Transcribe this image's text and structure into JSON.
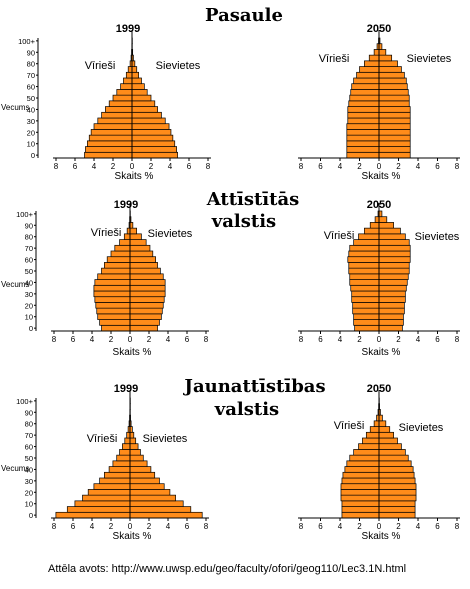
{
  "section_titles": {
    "world": "Pasaule",
    "developed": [
      "Attīstītās",
      "valstis"
    ],
    "developing": [
      "Jaunattīstības",
      "valstis"
    ]
  },
  "labels": {
    "males": "Vīrieši",
    "females": "Sievietes",
    "y_axis": "Vecums",
    "x_axis": "Skaits %"
  },
  "source": "Attēla avots: http://www.uwsp.edu/geo/faculty/ofori/geog110/Lec3.1N.html",
  "colors": {
    "bar_fill": "#ff8c1a",
    "bar_stroke": "#000000"
  },
  "chart_data": [
    {
      "type": "bar",
      "orientation": "horizontal",
      "group": "Pasaule",
      "title": "1999",
      "categories": [
        "0",
        "5",
        "10",
        "15",
        "20",
        "25",
        "30",
        "35",
        "40",
        "45",
        "50",
        "55",
        "60",
        "65",
        "70",
        "75",
        "80",
        "85",
        "90",
        "95",
        "100+"
      ],
      "xlim": [
        -8,
        8
      ],
      "x_ticks": [
        "8",
        "6",
        "4",
        "2",
        "0",
        "2",
        "4",
        "6",
        "8"
      ],
      "series": [
        {
          "name": "Vīrieši",
          "values": [
            5.0,
            4.9,
            4.7,
            4.5,
            4.3,
            4.0,
            3.6,
            3.2,
            2.8,
            2.4,
            2.0,
            1.6,
            1.2,
            0.9,
            0.6,
            0.4,
            0.2,
            0.1,
            0.05,
            0.02,
            0.01
          ]
        },
        {
          "name": "Sievietes",
          "values": [
            4.8,
            4.7,
            4.5,
            4.3,
            4.1,
            3.9,
            3.5,
            3.1,
            2.7,
            2.4,
            2.0,
            1.6,
            1.3,
            1.0,
            0.7,
            0.5,
            0.3,
            0.15,
            0.07,
            0.03,
            0.01
          ]
        }
      ]
    },
    {
      "type": "bar",
      "orientation": "horizontal",
      "group": "Pasaule",
      "title": "2050",
      "categories": [
        "0",
        "5",
        "10",
        "15",
        "20",
        "25",
        "30",
        "35",
        "40",
        "45",
        "50",
        "55",
        "60",
        "65",
        "70",
        "75",
        "80",
        "85",
        "90",
        "95",
        "100+"
      ],
      "xlim": [
        -8,
        8
      ],
      "x_ticks": [
        "8",
        "6",
        "4",
        "2",
        "0",
        "2",
        "4",
        "6",
        "8"
      ],
      "series": [
        {
          "name": "Vīrieši",
          "values": [
            3.3,
            3.3,
            3.3,
            3.3,
            3.3,
            3.3,
            3.2,
            3.2,
            3.2,
            3.1,
            3.0,
            2.9,
            2.8,
            2.6,
            2.3,
            2.0,
            1.5,
            1.0,
            0.5,
            0.2,
            0.05
          ]
        },
        {
          "name": "Sievietes",
          "values": [
            3.2,
            3.2,
            3.2,
            3.2,
            3.2,
            3.2,
            3.2,
            3.2,
            3.2,
            3.1,
            3.1,
            3.0,
            2.9,
            2.8,
            2.6,
            2.3,
            1.9,
            1.3,
            0.7,
            0.3,
            0.1
          ]
        }
      ]
    },
    {
      "type": "bar",
      "orientation": "horizontal",
      "group": "Attīstītās valstis",
      "title": "1999",
      "categories": [
        "0",
        "5",
        "10",
        "15",
        "20",
        "25",
        "30",
        "35",
        "40",
        "45",
        "50",
        "55",
        "60",
        "65",
        "70",
        "75",
        "80",
        "85",
        "90",
        "95",
        "100+"
      ],
      "xlim": [
        -8,
        8
      ],
      "x_ticks": [
        "8",
        "6",
        "4",
        "2",
        "0",
        "2",
        "4",
        "6",
        "8"
      ],
      "series": [
        {
          "name": "Vīrieši",
          "values": [
            3.0,
            3.2,
            3.4,
            3.5,
            3.6,
            3.7,
            3.8,
            3.8,
            3.7,
            3.4,
            3.0,
            2.7,
            2.4,
            2.0,
            1.6,
            1.1,
            0.6,
            0.3,
            0.1,
            0.04,
            0.01
          ]
        },
        {
          "name": "Sievietes",
          "values": [
            2.9,
            3.1,
            3.3,
            3.4,
            3.5,
            3.6,
            3.7,
            3.7,
            3.7,
            3.5,
            3.2,
            2.9,
            2.7,
            2.4,
            2.1,
            1.7,
            1.2,
            0.7,
            0.3,
            0.1,
            0.02
          ]
        }
      ]
    },
    {
      "type": "bar",
      "orientation": "horizontal",
      "group": "Attīstītās valstis",
      "title": "2050",
      "categories": [
        "0",
        "5",
        "10",
        "15",
        "20",
        "25",
        "30",
        "35",
        "40",
        "45",
        "50",
        "55",
        "60",
        "65",
        "70",
        "75",
        "80",
        "85",
        "90",
        "95",
        "100+"
      ],
      "xlim": [
        -8,
        8
      ],
      "x_ticks": [
        "8",
        "6",
        "4",
        "2",
        "0",
        "2",
        "4",
        "6",
        "8"
      ],
      "series": [
        {
          "name": "Vīrieši",
          "values": [
            2.5,
            2.6,
            2.6,
            2.7,
            2.7,
            2.8,
            2.8,
            2.9,
            3.0,
            3.0,
            3.1,
            3.1,
            3.2,
            3.1,
            3.0,
            2.6,
            2.1,
            1.5,
            0.9,
            0.4,
            0.1
          ]
        },
        {
          "name": "Sievietes",
          "values": [
            2.4,
            2.5,
            2.5,
            2.6,
            2.6,
            2.7,
            2.7,
            2.8,
            2.9,
            3.0,
            3.1,
            3.1,
            3.2,
            3.2,
            3.2,
            3.1,
            2.7,
            2.2,
            1.5,
            0.8,
            0.3
          ]
        }
      ]
    },
    {
      "type": "bar",
      "orientation": "horizontal",
      "group": "Jaunattīstības valstis",
      "title": "1999",
      "categories": [
        "0",
        "5",
        "10",
        "15",
        "20",
        "25",
        "30",
        "35",
        "40",
        "45",
        "50",
        "55",
        "60",
        "65",
        "70",
        "75",
        "80",
        "85",
        "90",
        "95",
        "100+"
      ],
      "xlim": [
        -8,
        8
      ],
      "x_ticks": [
        "8",
        "6",
        "4",
        "2",
        "0",
        "2",
        "4",
        "6",
        "8"
      ],
      "series": [
        {
          "name": "Vīrieši",
          "values": [
            7.8,
            6.6,
            5.8,
            5.0,
            4.4,
            3.8,
            3.2,
            2.7,
            2.2,
            1.8,
            1.4,
            1.1,
            0.8,
            0.55,
            0.35,
            0.2,
            0.1,
            0.05,
            0.02,
            0.01,
            0.01
          ]
        },
        {
          "name": "Sievietes",
          "values": [
            7.6,
            6.4,
            5.6,
            4.8,
            4.2,
            3.6,
            3.1,
            2.6,
            2.2,
            1.8,
            1.4,
            1.1,
            0.85,
            0.6,
            0.4,
            0.25,
            0.12,
            0.06,
            0.03,
            0.01,
            0.01
          ]
        }
      ]
    },
    {
      "type": "bar",
      "orientation": "horizontal",
      "group": "Jaunattīstības valstis",
      "title": "2050",
      "categories": [
        "0",
        "5",
        "10",
        "15",
        "20",
        "25",
        "30",
        "35",
        "40",
        "45",
        "50",
        "55",
        "60",
        "65",
        "70",
        "75",
        "80",
        "85",
        "90",
        "95",
        "100+"
      ],
      "xlim": [
        -8,
        8
      ],
      "x_ticks": [
        "8",
        "6",
        "4",
        "2",
        "0",
        "2",
        "4",
        "6",
        "8"
      ],
      "series": [
        {
          "name": "Vīrieši",
          "values": [
            3.8,
            3.8,
            3.8,
            3.9,
            3.9,
            3.9,
            3.8,
            3.7,
            3.5,
            3.3,
            3.0,
            2.6,
            2.1,
            1.7,
            1.3,
            0.9,
            0.5,
            0.25,
            0.1,
            0.04,
            0.01
          ]
        },
        {
          "name": "Sievietes",
          "values": [
            3.7,
            3.7,
            3.7,
            3.8,
            3.8,
            3.8,
            3.7,
            3.6,
            3.5,
            3.3,
            3.0,
            2.7,
            2.3,
            1.9,
            1.5,
            1.1,
            0.7,
            0.35,
            0.15,
            0.06,
            0.02
          ]
        }
      ]
    }
  ]
}
